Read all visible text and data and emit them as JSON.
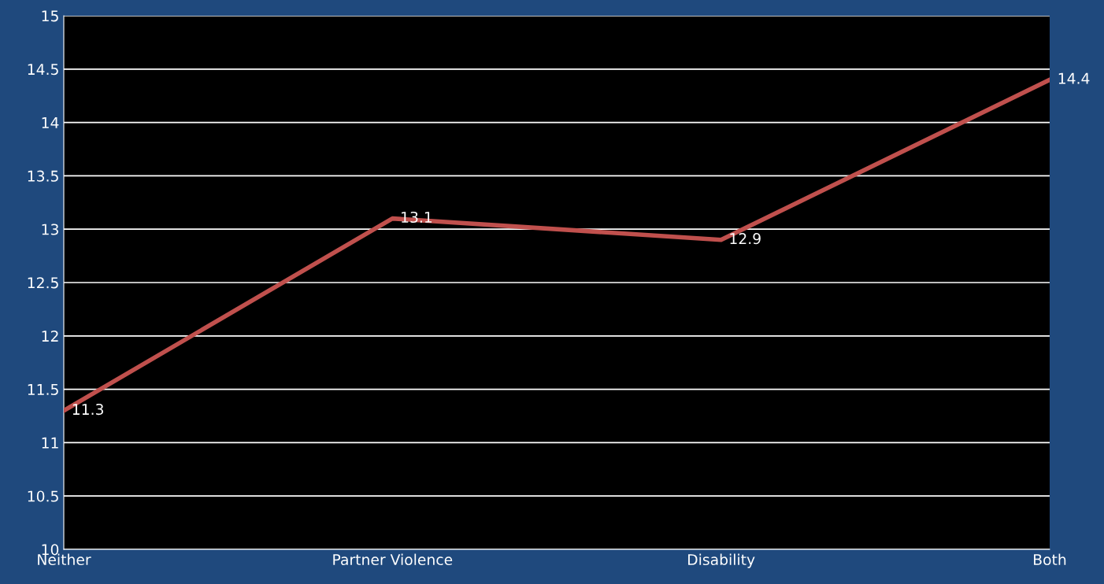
{
  "chart_data": {
    "type": "line",
    "categories": [
      "Neither",
      "Partner Violence",
      "Disability",
      "Both"
    ],
    "series": [
      {
        "color": "#c0504d",
        "values": [
          11.3,
          13.1,
          12.9,
          14.4
        ]
      }
    ],
    "ylim": [
      10,
      15
    ],
    "yticks": [
      10,
      10.5,
      11,
      11.5,
      12,
      12.5,
      13,
      13.5,
      14,
      14.5,
      15
    ],
    "grid": "y",
    "data_labels": true,
    "marker": "none",
    "line_style": "solid"
  }
}
